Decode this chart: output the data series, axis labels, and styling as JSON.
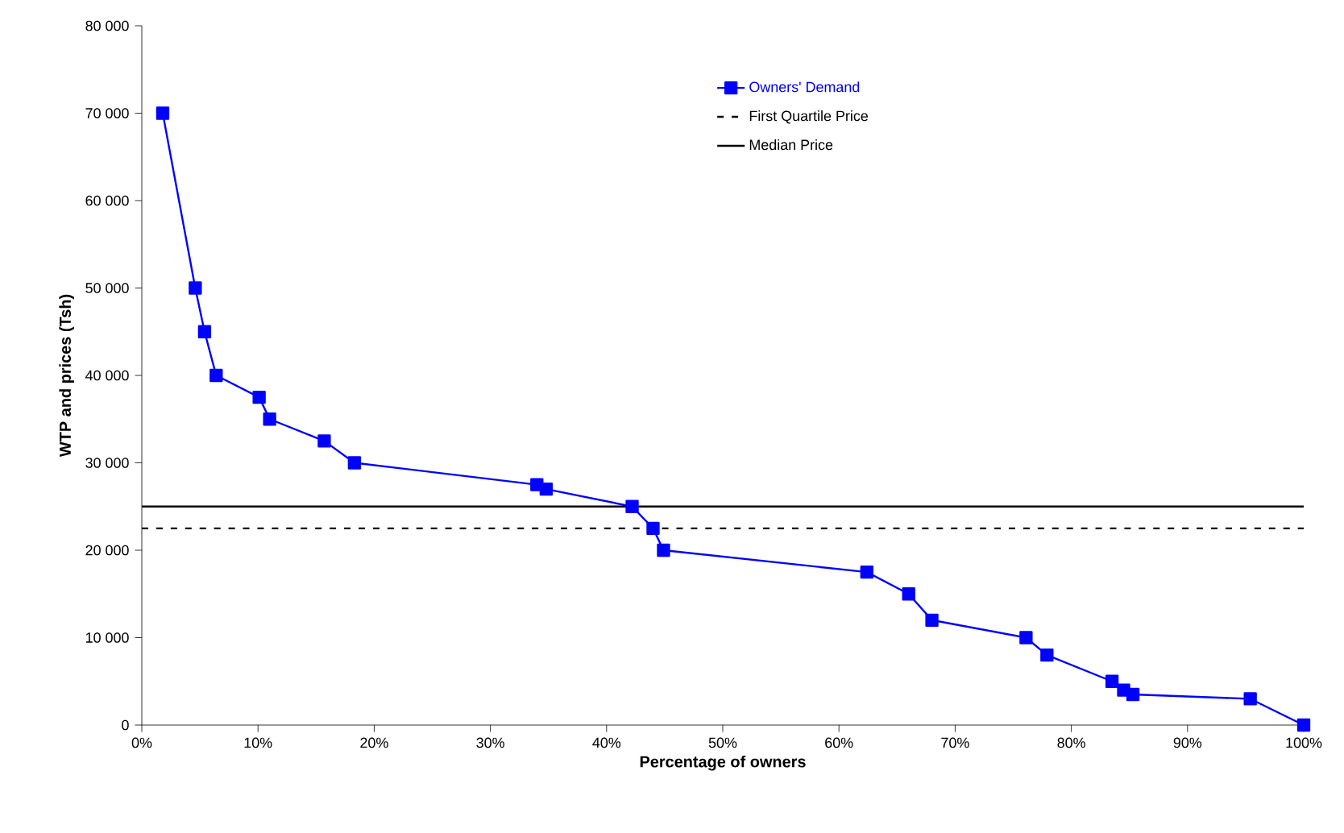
{
  "chart_data": {
    "type": "line",
    "xlabel": "Percentage of owners",
    "ylabel": "WTP and prices (Tsh)",
    "series": [
      {
        "name": "Owners' Demand",
        "color": "#0000ff",
        "marker": "square",
        "line_style": "solid",
        "x": [
          1.8,
          4.6,
          5.4,
          6.4,
          10.1,
          11.0,
          15.7,
          18.3,
          34.0,
          34.8,
          42.2,
          44.0,
          44.9,
          62.4,
          66.0,
          68.0,
          76.1,
          77.9,
          83.5,
          84.5,
          85.3,
          95.4,
          100
        ],
        "values": [
          70000,
          50000,
          45000,
          40000,
          37500,
          35000,
          32500,
          30000,
          27500,
          27000,
          25000,
          22500,
          20000,
          17500,
          15000,
          12000,
          10000,
          8000,
          5000,
          4000,
          3500,
          3000,
          0
        ]
      }
    ],
    "ref_lines": [
      {
        "axis": "y",
        "value": 22500,
        "label": "First  Quartile Price",
        "color": "#000000",
        "line_style": "dashed"
      },
      {
        "axis": "y",
        "value": 25000,
        "label": "Median Price",
        "color": "#000000",
        "line_style": "solid"
      }
    ],
    "xlim": [
      0,
      100
    ],
    "ylim": [
      0,
      80000
    ],
    "xticks": [
      {
        "value": 0,
        "label": "0%"
      },
      {
        "value": 10,
        "label": "10%"
      },
      {
        "value": 20,
        "label": "20%"
      },
      {
        "value": 30,
        "label": "30%"
      },
      {
        "value": 40,
        "label": "40%"
      },
      {
        "value": 50,
        "label": "50%"
      },
      {
        "value": 60,
        "label": "60%"
      },
      {
        "value": 70,
        "label": "70%"
      },
      {
        "value": 80,
        "label": "80%"
      },
      {
        "value": 90,
        "label": "90%"
      },
      {
        "value": 100,
        "label": "100%"
      }
    ],
    "yticks": [
      0,
      {
        "value": 10000,
        "label": "10 000"
      },
      {
        "value": 20000,
        "label": "20 000"
      },
      {
        "value": 30000,
        "label": "30 000"
      },
      {
        "value": 40000,
        "label": "40 000"
      },
      {
        "value": 50000,
        "label": "50 000"
      },
      {
        "value": 60000,
        "label": "60 000"
      },
      {
        "value": 70000,
        "label": "70 000"
      },
      {
        "value": 80000,
        "label": "80 000"
      }
    ],
    "grid": false,
    "legend": "top right"
  }
}
